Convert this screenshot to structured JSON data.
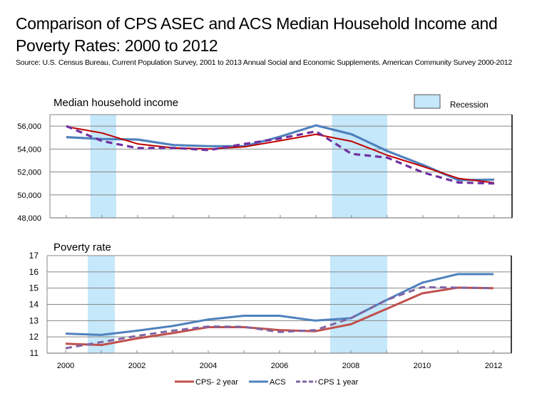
{
  "title": "Comparison of CPS ASEC and ACS Median Household Income and Poverty Rates:  2000 to 2012",
  "source": "Source: U.S. Census Bureau, Current Population Survey, 2001 to 2013 Annual Social and Economic Supplements.  American Community Survey 2000-2012",
  "colors": {
    "cps2": "#C0504D",
    "cps2_income": "#C00000",
    "acs": "#4F81BD",
    "cps1": "#7030A0",
    "cps1_poverty": "#8064A2",
    "recession": "#C5E8FA",
    "grid": "#868686"
  },
  "recession_legend": "Recession",
  "legend": [
    {
      "key": "cps2",
      "label": "CPS- 2 year",
      "style": "solid"
    },
    {
      "key": "acs",
      "label": "ACS",
      "style": "solid"
    },
    {
      "key": "cps1",
      "label": "CPS 1 year",
      "style": "dashed"
    }
  ],
  "chart_data": [
    {
      "type": "line",
      "title": "Median household income",
      "xlabel": "",
      "ylabel": "",
      "x": [
        2000,
        2001,
        2002,
        2003,
        2004,
        2005,
        2006,
        2007,
        2008,
        2009,
        2010,
        2011,
        2012
      ],
      "ylim": [
        48000,
        57000
      ],
      "yticks": [
        48000,
        50000,
        52000,
        54000,
        56000
      ],
      "ytick_labels": [
        "48,000",
        "50,000",
        "52,000",
        "54,000",
        "56,000"
      ],
      "grid": true,
      "recessions": [
        [
          2000.67,
          2001.4
        ],
        [
          2007.45,
          2009.0
        ]
      ],
      "series": [
        {
          "name": "CPS- 2 year",
          "values": [
            55950,
            55400,
            54450,
            54100,
            54000,
            54200,
            54730,
            55290,
            54670,
            53460,
            52480,
            51440,
            51060
          ]
        },
        {
          "name": "ACS",
          "values": [
            55040,
            54880,
            54830,
            54350,
            54250,
            54250,
            55080,
            56060,
            55290,
            53830,
            52620,
            51290,
            51330
          ]
        },
        {
          "name": "CPS 1 year",
          "values": [
            56000,
            54700,
            54080,
            54100,
            53900,
            54450,
            54920,
            55540,
            53580,
            53250,
            51960,
            51080,
            51000
          ]
        }
      ]
    },
    {
      "type": "line",
      "title": "Poverty rate",
      "xlabel": "",
      "ylabel": "",
      "x": [
        2000,
        2001,
        2002,
        2003,
        2004,
        2005,
        2006,
        2007,
        2008,
        2009,
        2010,
        2011,
        2012
      ],
      "xtick_labels": [
        "2000",
        "2002",
        "2004",
        "2006",
        "2008",
        "2010",
        "2012"
      ],
      "ylim": [
        11,
        17
      ],
      "yticks": [
        11,
        12,
        13,
        14,
        15,
        16,
        17
      ],
      "ytick_labels": [
        "11",
        "12",
        "13",
        "14",
        "15",
        "16",
        "17"
      ],
      "grid": true,
      "recessions": [
        [
          2000.62,
          2001.38
        ],
        [
          2007.42,
          2009.02
        ]
      ],
      "series": [
        {
          "name": "CPS- 2 year",
          "values": [
            11.58,
            11.5,
            11.9,
            12.23,
            12.6,
            12.6,
            12.42,
            12.35,
            12.78,
            13.72,
            14.68,
            15.03,
            15.0
          ]
        },
        {
          "name": "ACS",
          "values": [
            12.2,
            12.12,
            12.38,
            12.67,
            13.07,
            13.3,
            13.3,
            13.0,
            13.15,
            14.27,
            15.33,
            15.86,
            15.86
          ]
        },
        {
          "name": "CPS 1 year",
          "values": [
            11.3,
            11.68,
            12.06,
            12.38,
            12.64,
            12.62,
            12.3,
            12.42,
            13.15,
            14.27,
            15.06,
            15.03,
            15.0
          ]
        }
      ]
    }
  ]
}
